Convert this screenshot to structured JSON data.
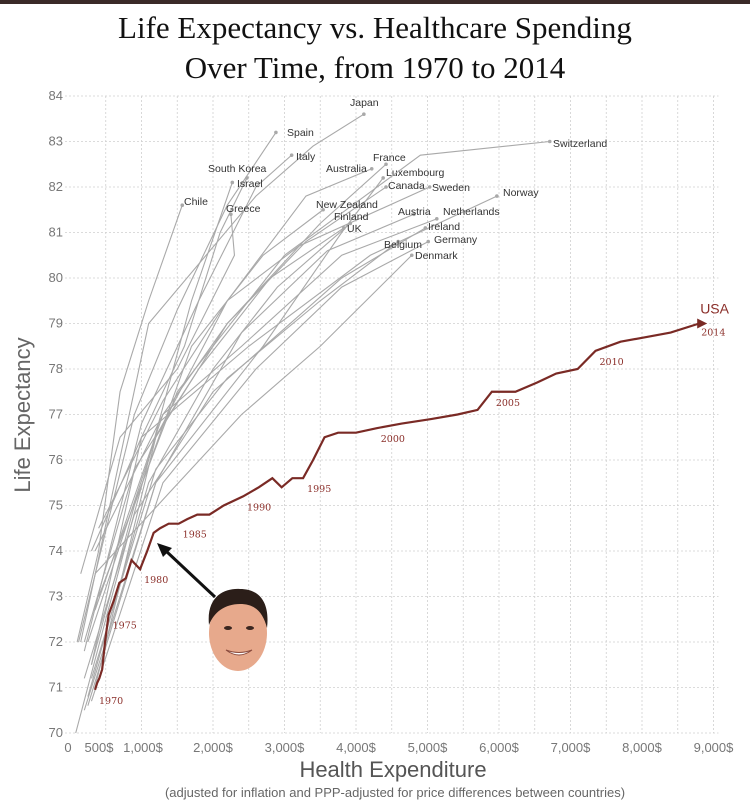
{
  "chart_data": {
    "type": "line",
    "title": "Life Expectancy vs. Healthcare Spending Over Time, from 1970 to 2014",
    "title_lines": [
      "Life Expectancy vs. Healthcare Spending",
      "Over Time, from 1970 to 2014"
    ],
    "xlabel": "Health Expenditure",
    "xlabel_note": "(adjusted for inflation and PPP-adjusted for price differences between countries)",
    "ylabel": "Life Expectancy",
    "xlim": [
      0,
      9000
    ],
    "ylim": [
      70,
      84
    ],
    "x_ticks": [
      {
        "value": 0,
        "label": "0"
      },
      {
        "value": 500,
        "label": "500$"
      },
      {
        "value": 1000,
        "label": "1,000$"
      },
      {
        "value": 2000,
        "label": "2,000$"
      },
      {
        "value": 3000,
        "label": "3,000$"
      },
      {
        "value": 4000,
        "label": "4,000$"
      },
      {
        "value": 5000,
        "label": "5,000$"
      },
      {
        "value": 6000,
        "label": "6,000$"
      },
      {
        "value": 7000,
        "label": "7,000$"
      },
      {
        "value": 8000,
        "label": "8,000$"
      },
      {
        "value": 9000,
        "label": "9,000$"
      }
    ],
    "y_ticks": [
      "70",
      "71",
      "72",
      "73",
      "74",
      "75",
      "76",
      "77",
      "78",
      "79",
      "80",
      "81",
      "82",
      "83",
      "84"
    ],
    "grid": true,
    "colors": {
      "highlight": "#7a2a25",
      "others": "#a9a9a9",
      "grid": "#cfcfcf"
    },
    "highlight_series": {
      "name": "USA",
      "end_year_label": "2014",
      "year_labels": [
        "1970",
        "1975",
        "1980",
        "1985",
        "1990",
        "1995",
        "2000",
        "2005",
        "2010",
        "2014"
      ],
      "points": [
        [
          1970,
          350,
          70.95
        ],
        [
          1971,
          380,
          71.1
        ],
        [
          1972,
          410,
          71.2
        ],
        [
          1973,
          450,
          71.4
        ],
        [
          1974,
          490,
          72.0
        ],
        [
          1975,
          540,
          72.6
        ],
        [
          1976,
          610,
          72.9
        ],
        [
          1977,
          690,
          73.3
        ],
        [
          1978,
          780,
          73.4
        ],
        [
          1979,
          860,
          73.8
        ],
        [
          1980,
          980,
          73.6
        ],
        [
          1981,
          1080,
          74.0
        ],
        [
          1982,
          1170,
          74.4
        ],
        [
          1983,
          1260,
          74.5
        ],
        [
          1984,
          1380,
          74.6
        ],
        [
          1985,
          1520,
          74.6
        ],
        [
          1986,
          1640,
          74.7
        ],
        [
          1987,
          1780,
          74.8
        ],
        [
          1988,
          1950,
          74.8
        ],
        [
          1989,
          2150,
          75.0
        ],
        [
          1990,
          2420,
          75.2
        ],
        [
          1991,
          2640,
          75.4
        ],
        [
          1992,
          2830,
          75.6
        ],
        [
          1993,
          2960,
          75.4
        ],
        [
          1994,
          3110,
          75.6
        ],
        [
          1995,
          3260,
          75.6
        ],
        [
          1996,
          3400,
          76.0
        ],
        [
          1997,
          3560,
          76.5
        ],
        [
          1998,
          3750,
          76.6
        ],
        [
          1999,
          4000,
          76.6
        ],
        [
          2000,
          4290,
          76.7
        ],
        [
          2001,
          4640,
          76.8
        ],
        [
          2002,
          5050,
          76.9
        ],
        [
          2003,
          5420,
          77.0
        ],
        [
          2004,
          5700,
          77.1
        ],
        [
          2005,
          5900,
          77.5
        ],
        [
          2006,
          6230,
          77.5
        ],
        [
          2007,
          6530,
          77.7
        ],
        [
          2008,
          6800,
          77.9
        ],
        [
          2009,
          7100,
          78.0
        ],
        [
          2010,
          7350,
          78.4
        ],
        [
          2011,
          7700,
          78.6
        ],
        [
          2012,
          8050,
          78.7
        ],
        [
          2013,
          8400,
          78.8
        ],
        [
          2014,
          8800,
          79.0
        ]
      ]
    },
    "series": [
      {
        "name": "Japan",
        "points": [
          [
            150,
            72.0
          ],
          [
            1100,
            79.0
          ],
          [
            2600,
            81.8
          ],
          [
            3400,
            82.9
          ],
          [
            4110,
            83.6
          ]
        ]
      },
      {
        "name": "Spain",
        "points": [
          [
            120,
            72.0
          ],
          [
            900,
            77.0
          ],
          [
            1500,
            79.3
          ],
          [
            2200,
            81.6
          ],
          [
            2880,
            83.2
          ]
        ]
      },
      {
        "name": "Italy",
        "points": [
          [
            200,
            71.8
          ],
          [
            1000,
            76.8
          ],
          [
            1800,
            79.5
          ],
          [
            2600,
            82.0
          ],
          [
            3100,
            82.7
          ]
        ]
      },
      {
        "name": "South Korea",
        "points": [
          [
            80,
            70.0
          ],
          [
            500,
            72.5
          ],
          [
            1100,
            76.0
          ],
          [
            1700,
            79.5
          ],
          [
            2270,
            82.1
          ]
        ]
      },
      {
        "name": "Israel",
        "points": [
          [
            300,
            71.5
          ],
          [
            1000,
            76.5
          ],
          [
            1600,
            78.5
          ],
          [
            2100,
            81.0
          ],
          [
            2475,
            82.2
          ]
        ]
      },
      {
        "name": "Chile",
        "points": [
          [
            100,
            72.0
          ],
          [
            400,
            74.0
          ],
          [
            700,
            77.5
          ],
          [
            1100,
            79.5
          ],
          [
            1570,
            81.6
          ]
        ]
      },
      {
        "name": "Greece",
        "points": [
          [
            150,
            73.5
          ],
          [
            700,
            76.5
          ],
          [
            1500,
            78.0
          ],
          [
            2300,
            80.5
          ],
          [
            2250,
            81.4
          ]
        ]
      },
      {
        "name": "Australia",
        "points": [
          [
            350,
            71.0
          ],
          [
            1200,
            76.5
          ],
          [
            2200,
            79.5
          ],
          [
            3300,
            81.8
          ],
          [
            4220,
            82.4
          ]
        ]
      },
      {
        "name": "France",
        "points": [
          [
            250,
            72.0
          ],
          [
            1200,
            76.5
          ],
          [
            2200,
            79.0
          ],
          [
            3500,
            81.2
          ],
          [
            4420,
            82.5
          ]
        ]
      },
      {
        "name": "Luxembourg",
        "points": [
          [
            200,
            70.5
          ],
          [
            1200,
            75.5
          ],
          [
            2700,
            78.5
          ],
          [
            3800,
            81.0
          ],
          [
            4380,
            82.2
          ]
        ]
      },
      {
        "name": "Canada",
        "points": [
          [
            350,
            72.7
          ],
          [
            1300,
            77.0
          ],
          [
            2200,
            79.0
          ],
          [
            3300,
            80.8
          ],
          [
            4420,
            82.0
          ]
        ]
      },
      {
        "name": "Sweden",
        "points": [
          [
            400,
            74.5
          ],
          [
            1300,
            77.3
          ],
          [
            2200,
            79.5
          ],
          [
            3200,
            80.7
          ],
          [
            5030,
            82.0
          ]
        ]
      },
      {
        "name": "Switzerland",
        "points": [
          [
            400,
            73.0
          ],
          [
            1500,
            77.5
          ],
          [
            3000,
            80.5
          ],
          [
            4900,
            82.7
          ],
          [
            6710,
            83.0
          ]
        ]
      },
      {
        "name": "Norway",
        "points": [
          [
            300,
            74.0
          ],
          [
            1000,
            76.5
          ],
          [
            2500,
            78.5
          ],
          [
            4200,
            80.5
          ],
          [
            5970,
            81.8
          ]
        ]
      },
      {
        "name": "New Zealand",
        "points": [
          [
            300,
            71.5
          ],
          [
            900,
            75.0
          ],
          [
            1700,
            78.5
          ],
          [
            2700,
            80.5
          ],
          [
            3540,
            81.5
          ]
        ]
      },
      {
        "name": "Finland",
        "points": [
          [
            250,
            70.8
          ],
          [
            1100,
            75.5
          ],
          [
            2000,
            78.0
          ],
          [
            2900,
            79.8
          ],
          [
            3920,
            81.2
          ]
        ]
      },
      {
        "name": "UK",
        "points": [
          [
            200,
            72.0
          ],
          [
            900,
            75.8
          ],
          [
            1800,
            78.0
          ],
          [
            2800,
            80.0
          ],
          [
            3830,
            81.1
          ]
        ]
      },
      {
        "name": "Austria",
        "points": [
          [
            250,
            70.6
          ],
          [
            1200,
            75.5
          ],
          [
            2400,
            78.8
          ],
          [
            3600,
            80.6
          ],
          [
            4810,
            81.4
          ]
        ]
      },
      {
        "name": "Netherlands",
        "points": [
          [
            350,
            74.0
          ],
          [
            1300,
            77.0
          ],
          [
            2400,
            78.5
          ],
          [
            3800,
            80.5
          ],
          [
            5130,
            81.3
          ]
        ]
      },
      {
        "name": "Ireland",
        "points": [
          [
            200,
            71.2
          ],
          [
            900,
            74.8
          ],
          [
            2000,
            77.5
          ],
          [
            3800,
            80.0
          ],
          [
            4970,
            81.1
          ]
        ]
      },
      {
        "name": "Germany",
        "points": [
          [
            300,
            70.7
          ],
          [
            1300,
            75.5
          ],
          [
            2600,
            78.0
          ],
          [
            3800,
            79.8
          ],
          [
            5010,
            80.8
          ]
        ]
      },
      {
        "name": "Belgium",
        "points": [
          [
            300,
            71.2
          ],
          [
            1200,
            75.8
          ],
          [
            2200,
            77.8
          ],
          [
            3500,
            79.5
          ],
          [
            4590,
            80.8
          ]
        ]
      },
      {
        "name": "Denmark",
        "points": [
          [
            350,
            73.5
          ],
          [
            1400,
            75.3
          ],
          [
            2400,
            77.0
          ],
          [
            3500,
            78.5
          ],
          [
            4780,
            80.5
          ]
        ]
      }
    ],
    "annotation": {
      "type": "portrait-with-arrow",
      "points_to_year": "1980"
    }
  }
}
